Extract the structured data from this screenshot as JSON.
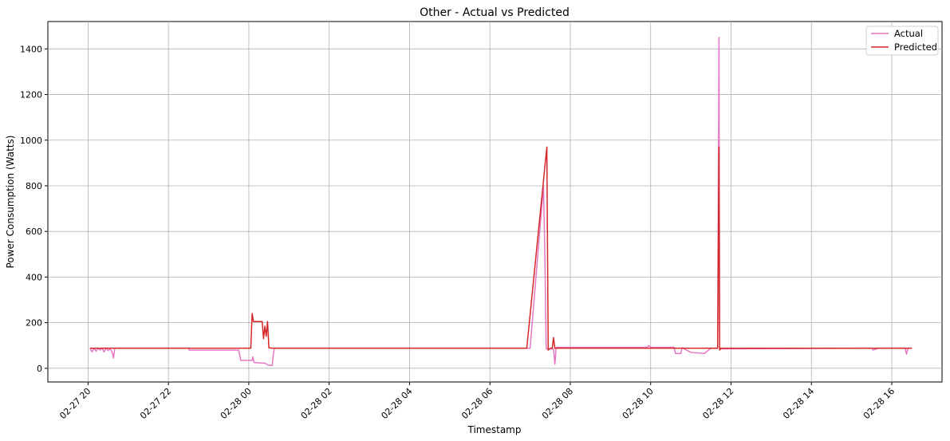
{
  "chart_data": {
    "type": "line",
    "title": "Other - Actual vs Predicted",
    "xlabel": "Timestamp",
    "ylabel": "Power Consumption (Watts)",
    "xlim": [
      "02-27 19:00",
      "02-28 17:15"
    ],
    "ylim": [
      -60,
      1520
    ],
    "y_ticks": [
      0,
      200,
      400,
      600,
      800,
      1000,
      1200,
      1400
    ],
    "x_ticks": [
      {
        "t": "02-27 20:00",
        "label": "02-27 20"
      },
      {
        "t": "02-27 22:00",
        "label": "02-27 22"
      },
      {
        "t": "02-28 00:00",
        "label": "02-28 00"
      },
      {
        "t": "02-28 02:00",
        "label": "02-28 02"
      },
      {
        "t": "02-28 04:00",
        "label": "02-28 04"
      },
      {
        "t": "02-28 06:00",
        "label": "02-28 06"
      },
      {
        "t": "02-28 08:00",
        "label": "02-28 08"
      },
      {
        "t": "02-28 10:00",
        "label": "02-28 10"
      },
      {
        "t": "02-28 12:00",
        "label": "02-28 12"
      },
      {
        "t": "02-28 14:00",
        "label": "02-28 14"
      },
      {
        "t": "02-28 16:00",
        "label": "02-28 16"
      }
    ],
    "grid": true,
    "legend_position": "top-right",
    "series": [
      {
        "name": "Actual",
        "color": "#e377c2",
        "points": [
          [
            "02-27 20:03",
            88
          ],
          [
            "02-27 20:06",
            72
          ],
          [
            "02-27 20:09",
            88
          ],
          [
            "02-27 20:12",
            75
          ],
          [
            "02-27 20:15",
            88
          ],
          [
            "02-27 20:18",
            80
          ],
          [
            "02-27 20:21",
            88
          ],
          [
            "02-27 20:24",
            72
          ],
          [
            "02-27 20:27",
            90
          ],
          [
            "02-27 20:30",
            78
          ],
          [
            "02-27 20:33",
            86
          ],
          [
            "02-27 20:36",
            70
          ],
          [
            "02-27 20:38",
            45
          ],
          [
            "02-27 20:40",
            88
          ],
          [
            "02-27 21:00",
            88
          ],
          [
            "02-27 22:30",
            88
          ],
          [
            "02-27 22:31",
            80
          ],
          [
            "02-27 23:45",
            80
          ],
          [
            "02-27 23:48",
            35
          ],
          [
            "02-28 00:05",
            35
          ],
          [
            "02-28 00:06",
            50
          ],
          [
            "02-28 00:08",
            25
          ],
          [
            "02-28 00:25",
            22
          ],
          [
            "02-28 00:28",
            15
          ],
          [
            "02-28 00:35",
            12
          ],
          [
            "02-28 00:36",
            45
          ],
          [
            "02-28 00:38",
            88
          ],
          [
            "02-28 02:00",
            88
          ],
          [
            "02-28 07:00",
            88
          ],
          [
            "02-28 07:20",
            800
          ],
          [
            "02-28 07:22",
            500
          ],
          [
            "02-28 07:24",
            85
          ],
          [
            "02-28 07:35",
            85
          ],
          [
            "02-28 07:37",
            18
          ],
          [
            "02-28 07:39",
            92
          ],
          [
            "02-28 09:55",
            92
          ],
          [
            "02-28 09:57",
            100
          ],
          [
            "02-28 10:00",
            92
          ],
          [
            "02-28 10:35",
            92
          ],
          [
            "02-28 10:37",
            65
          ],
          [
            "02-28 10:45",
            65
          ],
          [
            "02-28 10:47",
            90
          ],
          [
            "02-28 11:00",
            70
          ],
          [
            "02-28 11:20",
            65
          ],
          [
            "02-28 11:30",
            88
          ],
          [
            "02-28 11:40",
            88
          ],
          [
            "02-28 11:42",
            1450
          ],
          [
            "02-28 11:43",
            90
          ],
          [
            "02-28 11:46",
            85
          ],
          [
            "02-28 15:30",
            88
          ],
          [
            "02-28 15:32",
            80
          ],
          [
            "02-28 15:40",
            88
          ],
          [
            "02-28 16:20",
            88
          ],
          [
            "02-28 16:22",
            62
          ],
          [
            "02-28 16:24",
            88
          ],
          [
            "02-28 16:30",
            88
          ]
        ]
      },
      {
        "name": "Predicted",
        "color": "#d62728",
        "points": [
          [
            "02-27 20:03",
            88
          ],
          [
            "02-27 23:59",
            88
          ],
          [
            "02-28 00:03",
            88
          ],
          [
            "02-28 00:05",
            240
          ],
          [
            "02-28 00:07",
            205
          ],
          [
            "02-28 00:20",
            205
          ],
          [
            "02-28 00:22",
            130
          ],
          [
            "02-28 00:24",
            185
          ],
          [
            "02-28 00:26",
            140
          ],
          [
            "02-28 00:28",
            205
          ],
          [
            "02-28 00:30",
            90
          ],
          [
            "02-28 00:35",
            88
          ],
          [
            "02-28 06:55",
            88
          ],
          [
            "02-28 07:25",
            970
          ],
          [
            "02-28 07:27",
            80
          ],
          [
            "02-28 07:30",
            88
          ],
          [
            "02-28 07:33",
            88
          ],
          [
            "02-28 07:35",
            135
          ],
          [
            "02-28 07:37",
            88
          ],
          [
            "02-28 11:40",
            88
          ],
          [
            "02-28 11:42",
            970
          ],
          [
            "02-28 11:43",
            80
          ],
          [
            "02-28 11:45",
            88
          ],
          [
            "02-28 16:30",
            88
          ]
        ]
      }
    ]
  }
}
